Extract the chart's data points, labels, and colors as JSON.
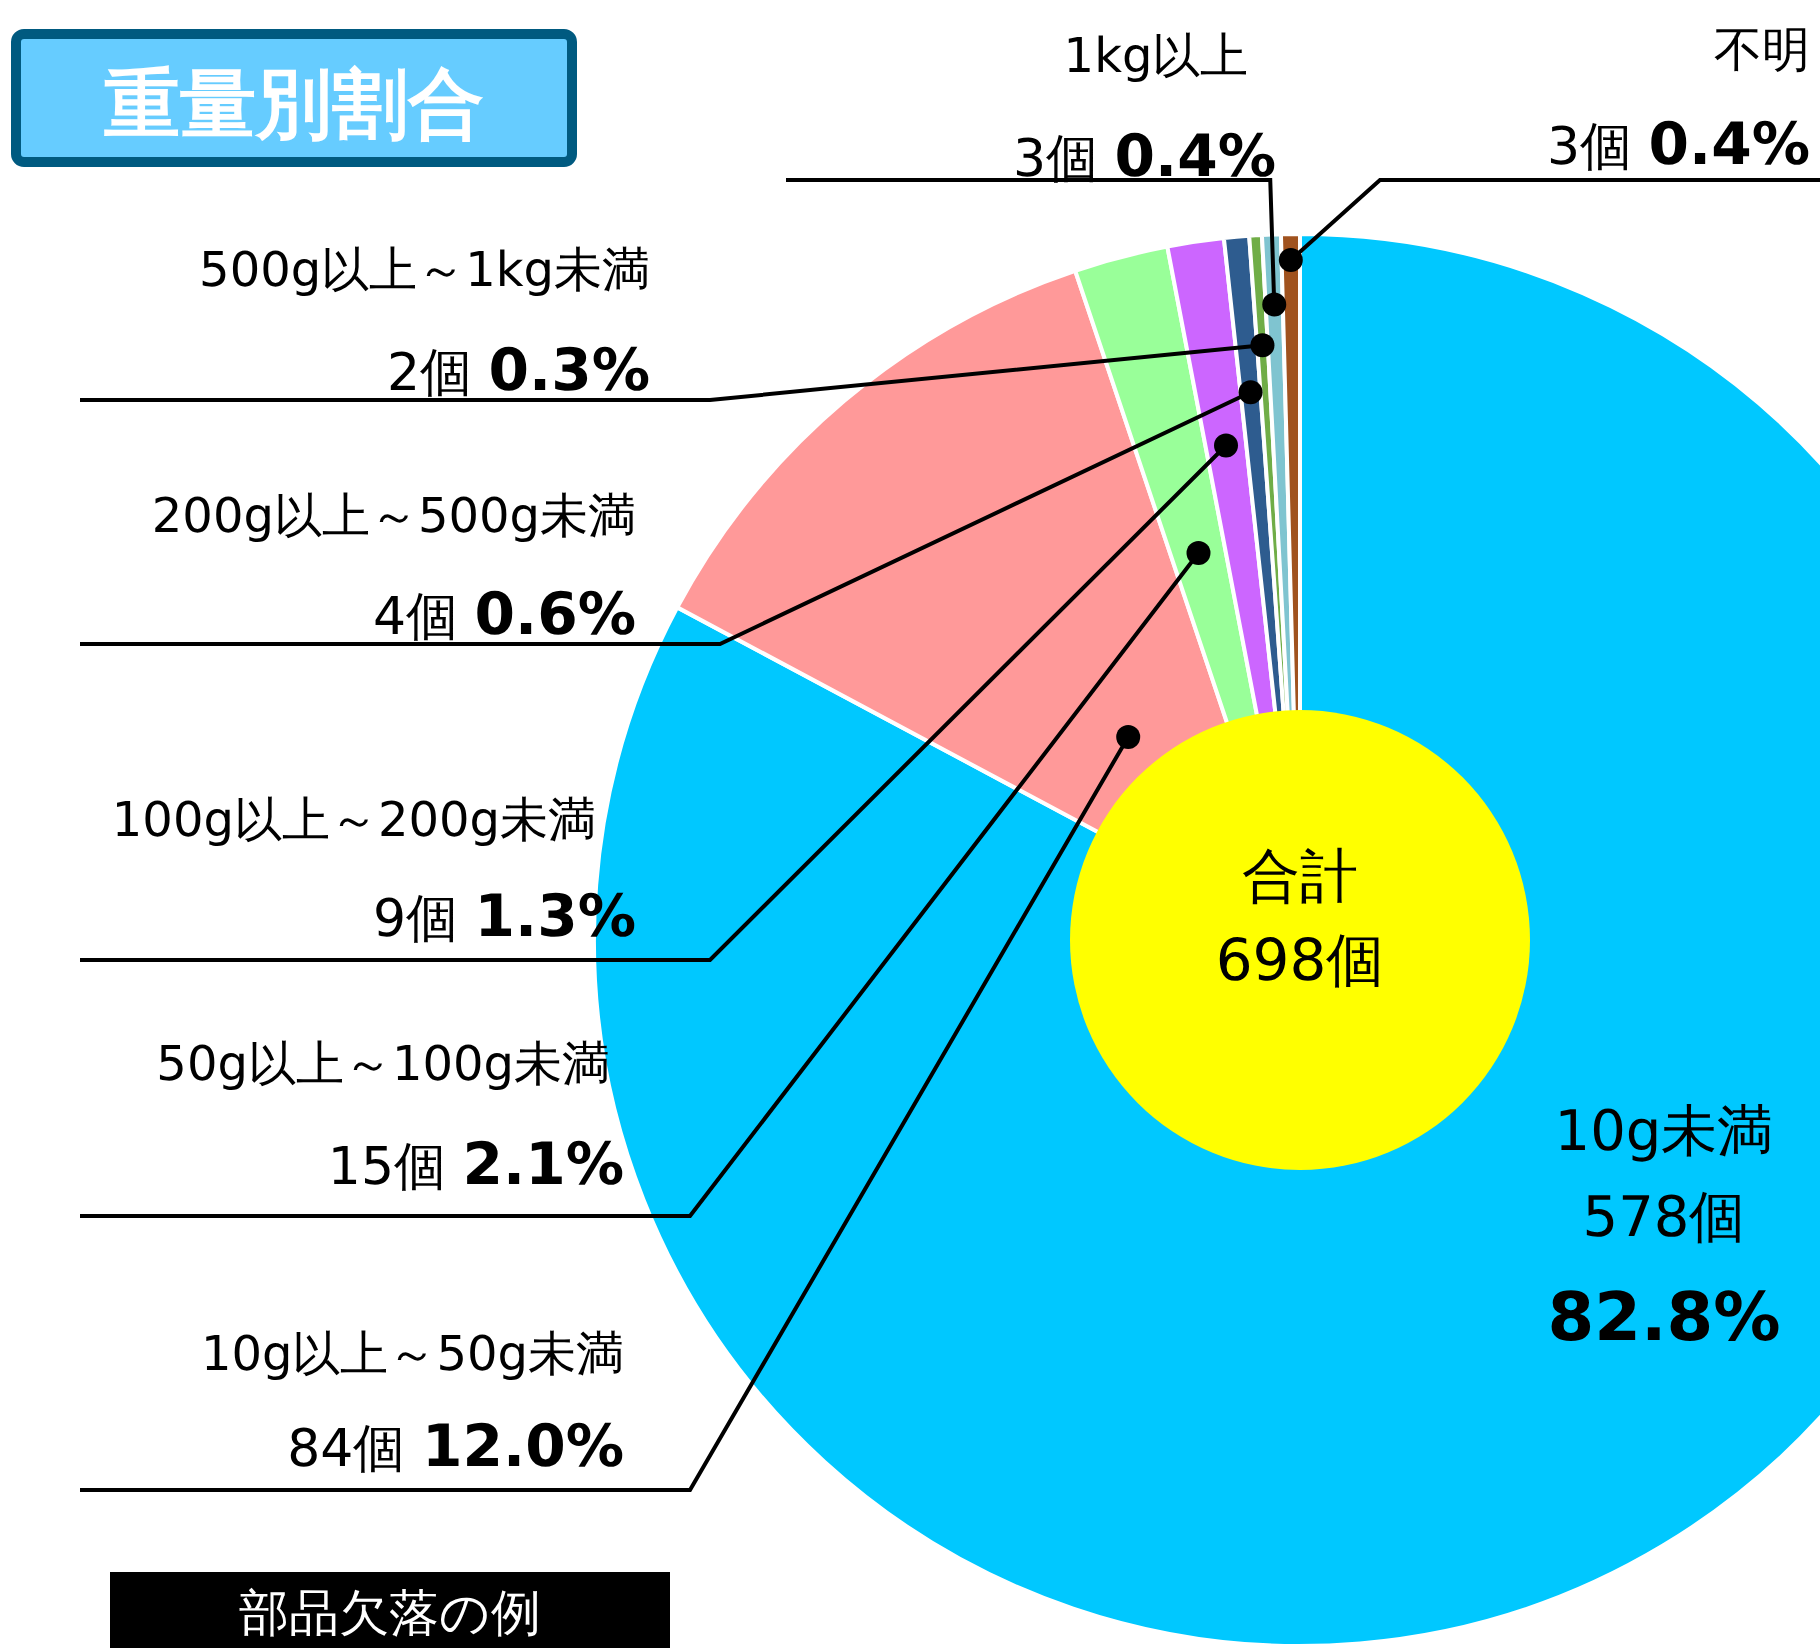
{
  "chart_data": {
    "type": "donut",
    "title": "重量別割合",
    "categories": [
      "10g未満",
      "10g以上～50g未満",
      "50g以上～100g未満",
      "100g以上～200g未満",
      "200g以上～500g未満",
      "500g以上～1kg未満",
      "1kg以上",
      "不明"
    ],
    "values": [
      578,
      84,
      15,
      9,
      4,
      2,
      3,
      3
    ],
    "value_labels": [
      "578個 **82.8%**",
      "84個 **12.0%**",
      "15個 **2.1%**",
      "9個 **1.3%**",
      "4個 **0.6%**",
      "2個 **0.3%**",
      "3個 **0.4%**",
      "3個 **0.4%**"
    ],
    "colors": [
      "#00c8ff",
      "#ff9999",
      "#99ff99",
      "#cc66ff",
      "#2e5c8f",
      "#70ad47",
      "#7fc4d0",
      "#a0521e"
    ],
    "annotations": [
      "合計 698個",
      "部品欠落の例"
    ]
  }
}
